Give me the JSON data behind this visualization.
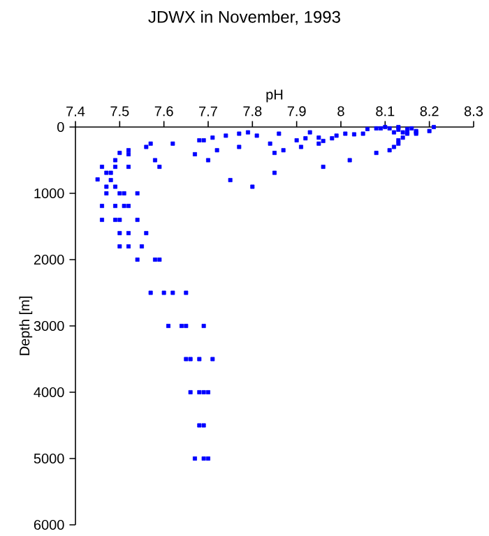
{
  "chart_data": {
    "type": "scatter",
    "title": "JDWX in November, 1993",
    "xlabel": "pH",
    "ylabel": "Depth [m]",
    "xlim": [
      7.4,
      8.3
    ],
    "xticks": [
      7.4,
      7.5,
      7.6,
      7.7,
      7.8,
      7.9,
      8,
      8.1,
      8.2,
      8.3
    ],
    "ylim": [
      6000,
      0
    ],
    "yticks": [
      0,
      1000,
      2000,
      3000,
      4000,
      5000,
      6000
    ],
    "marker": "square",
    "grid": false,
    "series": [
      {
        "color": "#0000ff",
        "x": [
          8.21,
          8.2,
          8.17,
          8.16,
          8.15,
          8.14,
          8.13,
          8.12,
          8.11,
          8.1,
          8.09,
          8.08,
          8.06,
          8.05,
          8.03,
          8.01,
          7.99,
          7.98,
          7.96,
          7.95,
          7.95,
          7.93,
          7.92,
          7.91,
          7.9,
          7.87,
          7.86,
          7.85,
          7.84,
          7.81,
          7.79,
          7.77,
          7.77,
          7.74,
          7.72,
          7.71,
          7.7,
          7.69,
          7.68,
          7.67,
          7.62,
          7.57,
          7.56,
          7.58,
          7.59,
          7.5,
          7.52,
          7.52,
          7.52,
          7.46,
          7.49,
          7.45,
          7.47,
          7.48,
          7.49,
          7.47,
          7.48,
          7.49,
          7.47,
          7.5,
          7.51,
          7.54,
          7.46,
          7.49,
          7.51,
          7.52,
          7.46,
          7.49,
          7.5,
          7.54,
          7.5,
          7.52,
          7.56,
          7.5,
          7.52,
          7.55,
          7.54,
          7.58,
          7.59,
          8.08,
          8.11,
          8.12,
          8.13,
          8.13,
          8.14,
          8.15,
          8.17,
          8.02,
          7.96,
          7.85,
          7.75,
          7.8,
          8.13,
          8.15,
          8.17,
          7.57,
          7.6,
          7.62,
          7.65,
          7.61,
          7.64,
          7.65,
          7.69,
          7.65,
          7.66,
          7.68,
          7.71,
          7.66,
          7.68,
          7.69,
          7.7,
          7.68,
          7.69,
          7.67,
          7.69,
          7.7
        ],
        "values": [
          0,
          60,
          80,
          20,
          30,
          80,
          0,
          80,
          20,
          0,
          20,
          20,
          30,
          100,
          110,
          100,
          130,
          170,
          210,
          160,
          250,
          80,
          170,
          300,
          200,
          350,
          100,
          390,
          250,
          130,
          80,
          100,
          300,
          130,
          350,
          160,
          500,
          200,
          200,
          410,
          250,
          250,
          300,
          500,
          600,
          390,
          350,
          410,
          600,
          600,
          500,
          790,
          690,
          690,
          600,
          900,
          800,
          900,
          1000,
          1000,
          1000,
          1000,
          1190,
          1190,
          1190,
          1190,
          1400,
          1400,
          1400,
          1400,
          1600,
          1600,
          1600,
          1800,
          1800,
          1800,
          2000,
          2000,
          2000,
          390,
          350,
          300,
          200,
          250,
          160,
          100,
          100,
          500,
          600,
          690,
          800,
          900,
          40,
          80,
          60,
          2500,
          2500,
          2500,
          2500,
          3000,
          3000,
          3000,
          3000,
          3500,
          3500,
          3500,
          3500,
          4000,
          4000,
          4000,
          4000,
          4500,
          4500,
          5000,
          5000,
          5000
        ]
      }
    ]
  }
}
